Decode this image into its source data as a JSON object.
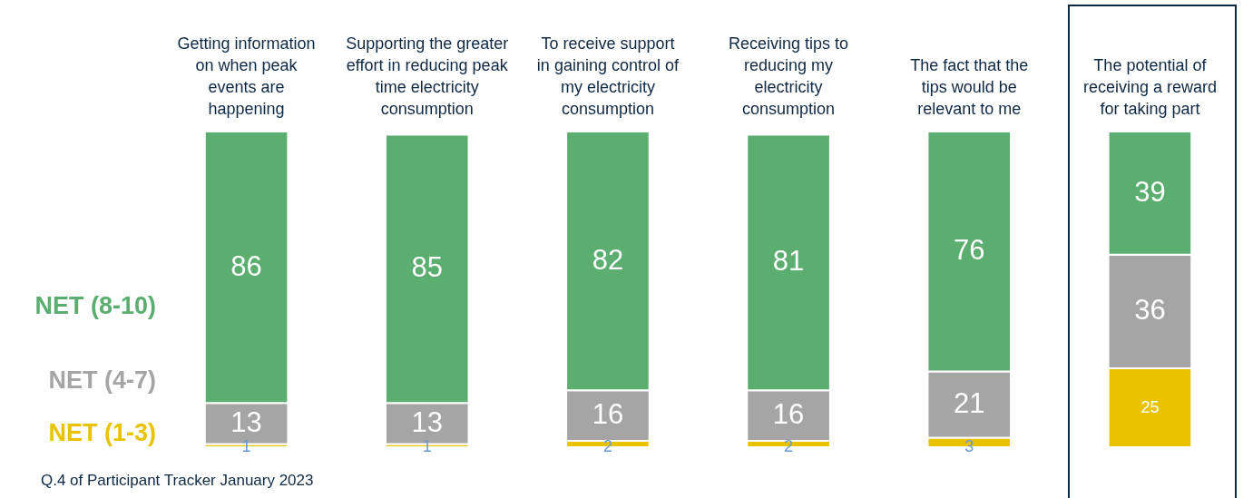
{
  "chart_data": {
    "type": "bar",
    "stacked": true,
    "data_labels": true,
    "legend": "left",
    "categories": [
      "Getting information on when peak events are happening",
      "Supporting the greater effort in reducing peak time electricity consumption",
      "To receive support in gaining control of my electricity consumption",
      "Receiving tips to reducing my electricity consumption",
      "The fact that the tips would be relevant to me",
      "The potential of receiving a reward for taking part"
    ],
    "series": [
      {
        "name": "NET (1-3)",
        "color": "#e9c300",
        "values": [
          1,
          1,
          2,
          2,
          3,
          25
        ]
      },
      {
        "name": "NET (4-7)",
        "color": "#a5a5a5",
        "values": [
          13,
          13,
          16,
          16,
          21,
          36
        ]
      },
      {
        "name": "NET (8-10)",
        "color": "#5bae70",
        "values": [
          86,
          85,
          82,
          81,
          76,
          39
        ]
      }
    ],
    "annotations": [
      "Q.4 of Participant Tracker January 2023"
    ]
  }
}
